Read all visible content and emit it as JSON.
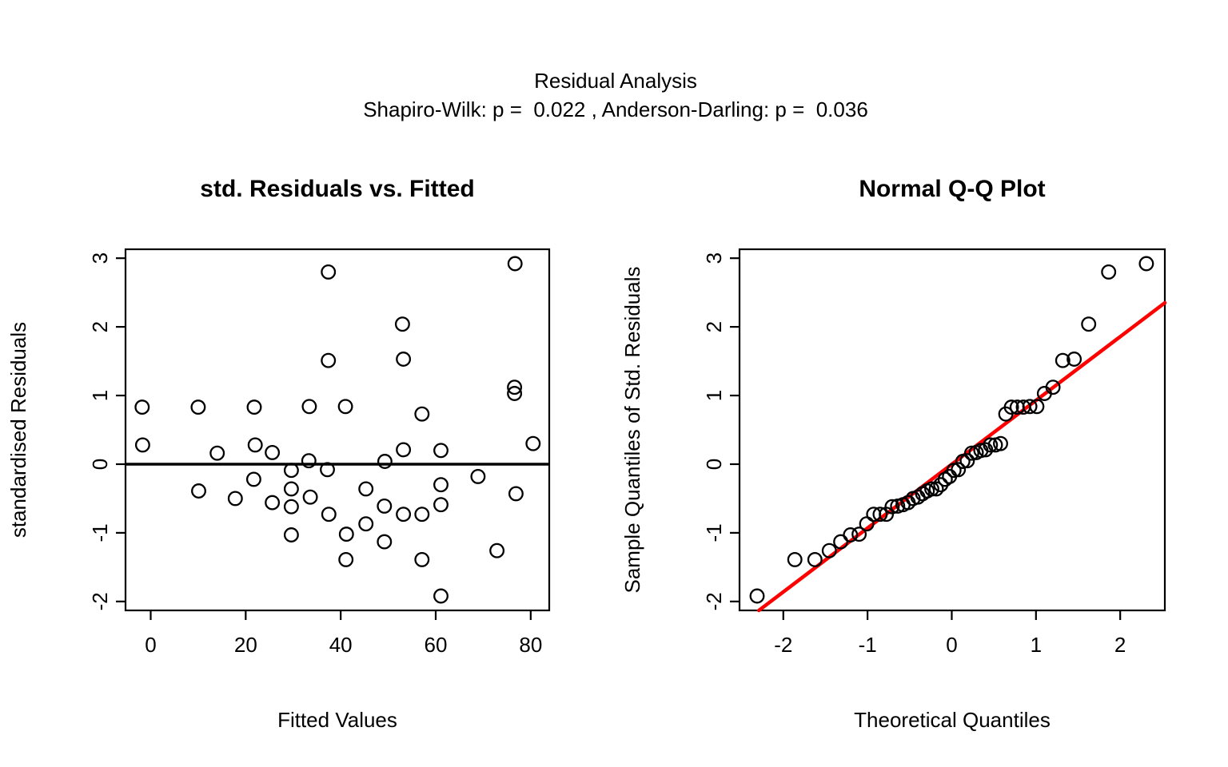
{
  "header": {
    "title": "Residual Analysis",
    "subtitle": "Shapiro-Wilk: p =  0.022 , Anderson-Darling: p =  0.036",
    "shapiro_wilk_p": "0.022",
    "anderson_darling_p": "0.036"
  },
  "colors": {
    "background": "#ffffff",
    "points": "#000000",
    "axis": "#000000",
    "qq_line": "#ff0000"
  },
  "chart_data": [
    {
      "type": "scatter",
      "title": "std. Residuals vs. Fitted",
      "xlabel": "Fitted Values",
      "ylabel": "standardised Residuals",
      "xticks": [
        0,
        20,
        40,
        60,
        80
      ],
      "yticks": [
        -2,
        -1,
        0,
        1,
        2,
        3
      ],
      "xlim": [
        -5.3,
        83.9
      ],
      "ylim": [
        -2.13,
        3.13
      ],
      "grid": false,
      "legend": null,
      "hline_y": 0,
      "marker": "open-circle",
      "points": [
        [
          37.4,
          2.8
        ],
        [
          76.7,
          2.92
        ],
        [
          53.0,
          2.04
        ],
        [
          37.4,
          1.51
        ],
        [
          53.2,
          1.53
        ],
        [
          76.6,
          1.12
        ],
        [
          76.6,
          1.03
        ],
        [
          -1.8,
          0.83
        ],
        [
          10.0,
          0.83
        ],
        [
          21.8,
          0.83
        ],
        [
          33.4,
          0.84
        ],
        [
          41.0,
          0.84
        ],
        [
          57.1,
          0.73
        ],
        [
          -1.7,
          0.28
        ],
        [
          14.0,
          0.16
        ],
        [
          22.0,
          0.28
        ],
        [
          25.6,
          0.17
        ],
        [
          80.5,
          0.3
        ],
        [
          53.2,
          0.21
        ],
        [
          61.1,
          0.2
        ],
        [
          33.3,
          0.05
        ],
        [
          49.3,
          0.04
        ],
        [
          29.6,
          -0.09
        ],
        [
          37.2,
          -0.08
        ],
        [
          21.7,
          -0.22
        ],
        [
          68.9,
          -0.18
        ],
        [
          10.1,
          -0.39
        ],
        [
          29.6,
          -0.36
        ],
        [
          45.3,
          -0.36
        ],
        [
          61.1,
          -0.3
        ],
        [
          76.9,
          -0.43
        ],
        [
          17.8,
          -0.5
        ],
        [
          25.6,
          -0.56
        ],
        [
          29.6,
          -0.62
        ],
        [
          33.6,
          -0.48
        ],
        [
          49.2,
          -0.61
        ],
        [
          53.2,
          -0.73
        ],
        [
          57.1,
          -0.73
        ],
        [
          61.1,
          -0.59
        ],
        [
          37.5,
          -0.73
        ],
        [
          41.2,
          -1.02
        ],
        [
          29.6,
          -1.03
        ],
        [
          45.3,
          -0.87
        ],
        [
          49.2,
          -1.13
        ],
        [
          41.1,
          -1.39
        ],
        [
          57.1,
          -1.39
        ],
        [
          72.9,
          -1.26
        ],
        [
          61.1,
          -1.92
        ]
      ]
    },
    {
      "type": "scatter",
      "title": "Normal Q-Q Plot",
      "xlabel": "Theoretical Quantiles",
      "ylabel": "Sample Quantiles of Std. Residuals",
      "xticks": [
        -2,
        -1,
        0,
        1,
        2
      ],
      "yticks": [
        -2,
        -1,
        0,
        1,
        2,
        3
      ],
      "xlim": [
        -2.52,
        2.53
      ],
      "ylim": [
        -2.13,
        3.13
      ],
      "grid": false,
      "legend": null,
      "marker": "open-circle",
      "qq_line": {
        "x1": -2.29,
        "y1": -2.13,
        "x2": 2.53,
        "y2": 2.35,
        "color": "#ff0000"
      },
      "points": [
        [
          -2.311,
          -1.92
        ],
        [
          -1.863,
          -1.39
        ],
        [
          -1.625,
          -1.39
        ],
        [
          -1.454,
          -1.26
        ],
        [
          -1.318,
          -1.13
        ],
        [
          -1.202,
          -1.03
        ],
        [
          -1.1,
          -1.02
        ],
        [
          -1.01,
          -0.87
        ],
        [
          -0.927,
          -0.73
        ],
        [
          -0.85,
          -0.73
        ],
        [
          -0.777,
          -0.73
        ],
        [
          -0.708,
          -0.62
        ],
        [
          -0.642,
          -0.61
        ],
        [
          -0.579,
          -0.59
        ],
        [
          -0.518,
          -0.56
        ],
        [
          -0.459,
          -0.5
        ],
        [
          -0.402,
          -0.48
        ],
        [
          -0.346,
          -0.43
        ],
        [
          -0.291,
          -0.39
        ],
        [
          -0.237,
          -0.36
        ],
        [
          -0.184,
          -0.36
        ],
        [
          -0.131,
          -0.3
        ],
        [
          -0.078,
          -0.22
        ],
        [
          -0.026,
          -0.18
        ],
        [
          0.026,
          -0.09
        ],
        [
          0.078,
          -0.08
        ],
        [
          0.131,
          0.04
        ],
        [
          0.184,
          0.05
        ],
        [
          0.237,
          0.16
        ],
        [
          0.291,
          0.17
        ],
        [
          0.346,
          0.2
        ],
        [
          0.402,
          0.21
        ],
        [
          0.459,
          0.28
        ],
        [
          0.518,
          0.28
        ],
        [
          0.579,
          0.3
        ],
        [
          0.642,
          0.73
        ],
        [
          0.708,
          0.83
        ],
        [
          0.777,
          0.83
        ],
        [
          0.85,
          0.83
        ],
        [
          0.927,
          0.84
        ],
        [
          1.01,
          0.84
        ],
        [
          1.1,
          1.03
        ],
        [
          1.202,
          1.12
        ],
        [
          1.318,
          1.51
        ],
        [
          1.454,
          1.53
        ],
        [
          1.625,
          2.04
        ],
        [
          1.863,
          2.8
        ],
        [
          2.311,
          2.92
        ]
      ]
    }
  ]
}
